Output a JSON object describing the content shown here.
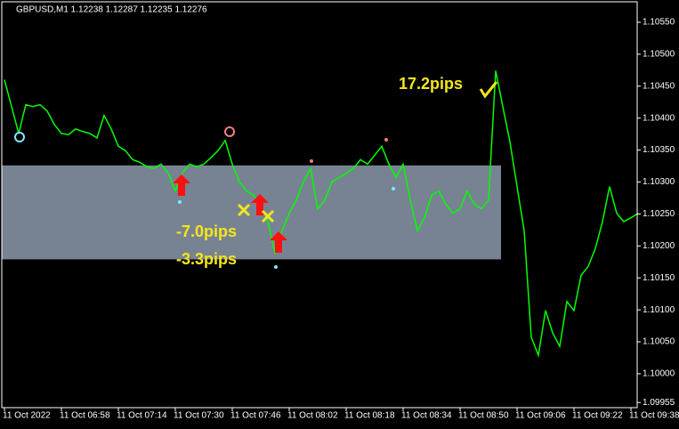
{
  "chart_data": {
    "type": "line",
    "title": "GBPUSD,M1  1.12238 1.12287 1.12235 1.12276",
    "categories": [
      "11 Oct 2022",
      null,
      null,
      null,
      null,
      null,
      null,
      null,
      "11 Oct 06:58",
      null,
      null,
      null,
      null,
      null,
      null,
      null,
      "11 Oct 07:14",
      null,
      null,
      null,
      null,
      null,
      null,
      null,
      "11 Oct 07:30",
      null,
      null,
      null,
      null,
      null,
      null,
      null,
      "11 Oct 07:46",
      null,
      null,
      null,
      null,
      null,
      null,
      null,
      "11 Oct 08:02",
      null,
      null,
      null,
      null,
      null,
      null,
      null,
      "11 Oct 08:18",
      null,
      null,
      null,
      null,
      null,
      null,
      null,
      "11 Oct 08:34",
      null,
      null,
      null,
      null,
      null,
      null,
      null,
      "11 Oct 08:50",
      null,
      null,
      null,
      null,
      null,
      null,
      null,
      "11 Oct 09:06",
      null,
      null,
      null,
      null,
      null,
      null,
      null,
      "11 Oct 09:22",
      null,
      null,
      null,
      null,
      null,
      null,
      null,
      "11 Oct 09:38",
      null
    ],
    "values": [
      1.1046,
      1.10418,
      1.10376,
      1.10421,
      1.10418,
      1.10421,
      1.10411,
      1.1039,
      1.10376,
      1.10374,
      1.10383,
      1.10379,
      1.10376,
      1.10369,
      1.10404,
      1.10383,
      1.10356,
      1.10349,
      1.10335,
      1.10331,
      1.10324,
      1.10321,
      1.10328,
      1.10314,
      1.10286,
      1.10314,
      1.10328,
      1.10324,
      1.10328,
      1.10338,
      1.10349,
      1.10365,
      1.10328,
      1.103,
      1.10286,
      1.10279,
      1.10265,
      1.10238,
      1.10189,
      1.10224,
      1.10251,
      1.10272,
      1.103,
      1.10321,
      1.10258,
      1.10272,
      1.103,
      1.10307,
      1.10314,
      1.10321,
      1.10335,
      1.10328,
      1.10342,
      1.10356,
      1.10328,
      1.10307,
      1.10328,
      1.10272,
      1.10224,
      1.10244,
      1.10279,
      1.10286,
      1.10265,
      1.10251,
      1.10258,
      1.10286,
      1.10265,
      1.10258,
      1.10272,
      1.10474,
      1.10418,
      1.10363,
      1.10293,
      1.10224,
      1.10057,
      1.10029,
      1.10099,
      1.10064,
      1.10043,
      1.10113,
      1.10099,
      1.10154,
      1.10168,
      1.10196,
      1.10238,
      1.10293,
      1.10251,
      1.10238,
      1.10244,
      1.10251
    ],
    "color": "#00ff00",
    "zone": [
      1.10179,
      1.10326
    ],
    "zone_color": "#778393",
    "ylim": [
      1.09947,
      1.10582
    ],
    "yticks": [
      {
        "value": 1.1055,
        "label": "1.10550"
      },
      {
        "value": 1.105,
        "label": "1.10500"
      },
      {
        "value": 1.1045,
        "label": "1.10450"
      },
      {
        "value": 1.104,
        "label": "1.10400"
      },
      {
        "value": 1.1035,
        "label": "1.10350"
      },
      {
        "value": 1.103,
        "label": "1.10300"
      },
      {
        "value": 1.1025,
        "label": "1.10250"
      },
      {
        "value": 1.102,
        "label": "1.10200"
      },
      {
        "value": 1.1015,
        "label": "1.10150"
      },
      {
        "value": 1.101,
        "label": "1.10100"
      },
      {
        "value": 1.1005,
        "label": "1.10050"
      },
      {
        "value": 1.1,
        "label": "1.10000"
      },
      {
        "value": 1.09955,
        "label": "1.09955"
      }
    ],
    "annotations": [
      "17.2pips",
      "-7.0pips",
      "-3.3pips"
    ],
    "grid": false
  }
}
